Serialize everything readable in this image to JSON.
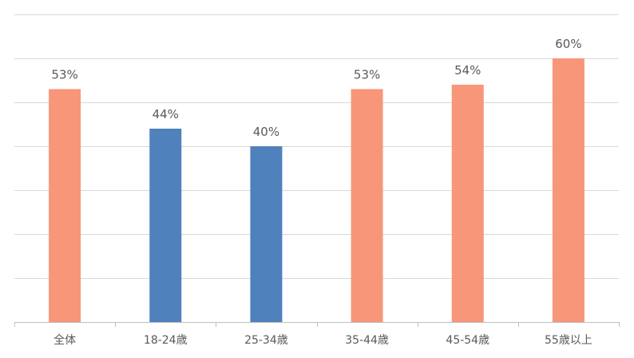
{
  "chart_data": {
    "type": "bar",
    "categories": [
      "全体",
      "18-24歳",
      "25-34歳",
      "35-44歳",
      "45-54歳",
      "55歳以上"
    ],
    "values": [
      53,
      44,
      40,
      53,
      54,
      60
    ],
    "labels": [
      "53%",
      "44%",
      "40%",
      "53%",
      "54%",
      "60%"
    ],
    "bar_colors": [
      "#f79679",
      "#4f81bd",
      "#4f81bd",
      "#f79679",
      "#f79679",
      "#f79679"
    ],
    "title": "",
    "xlabel": "",
    "ylabel": "",
    "ylim": [
      0,
      70
    ],
    "y_gridline_step": 10,
    "y_tick_labels_shown": false,
    "grid": true,
    "legend": "none"
  }
}
